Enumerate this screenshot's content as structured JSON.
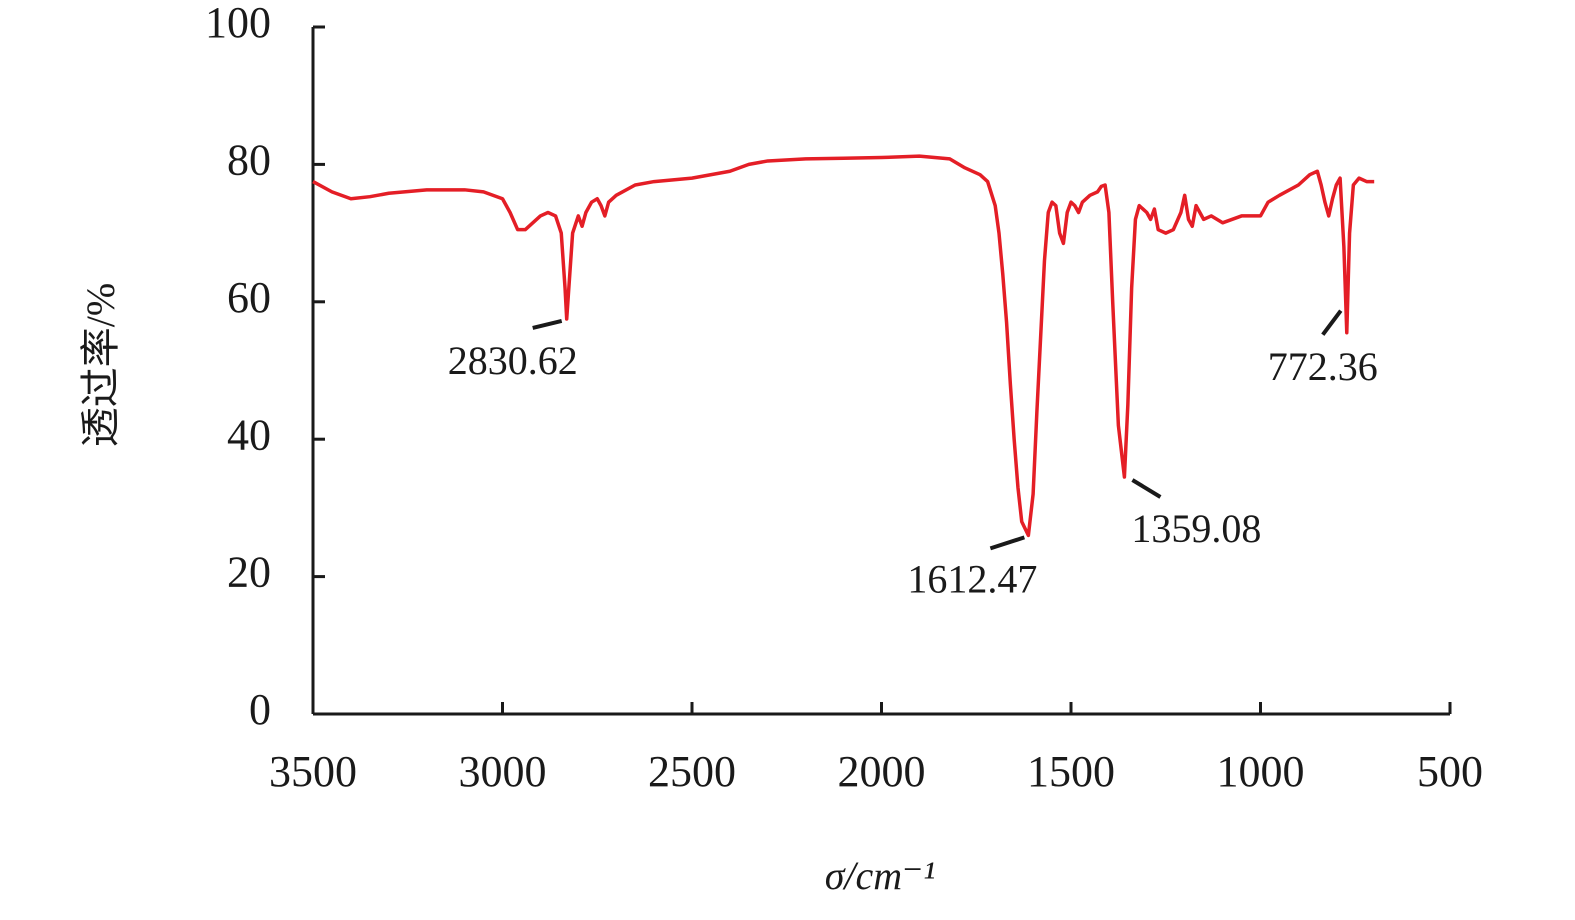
{
  "chart_data": {
    "type": "line",
    "x_label": "σ/cm⁻¹",
    "y_label": "透过率/%",
    "color": "#e41e26",
    "xlim": [
      3500,
      500
    ],
    "xticks": [
      3500,
      3000,
      2500,
      2000,
      1500,
      1000,
      500
    ],
    "ylim": [
      0,
      100
    ],
    "yticks": [
      0,
      20,
      40,
      60,
      80,
      100
    ],
    "grid": false,
    "x": [
      3500,
      3450,
      3400,
      3350,
      3300,
      3200,
      3100,
      3050,
      3000,
      2980,
      2960,
      2940,
      2920,
      2900,
      2880,
      2860,
      2845,
      2835,
      2830.62,
      2825,
      2815,
      2800,
      2790,
      2780,
      2765,
      2750,
      2740,
      2730,
      2720,
      2700,
      2650,
      2600,
      2500,
      2400,
      2350,
      2300,
      2200,
      2100,
      2000,
      1900,
      1820,
      1780,
      1740,
      1720,
      1700,
      1690,
      1680,
      1670,
      1660,
      1650,
      1640,
      1630,
      1612.47,
      1600,
      1590,
      1580,
      1570,
      1560,
      1550,
      1540,
      1530,
      1520,
      1510,
      1500,
      1490,
      1480,
      1470,
      1450,
      1430,
      1420,
      1410,
      1400,
      1390,
      1375,
      1359.08,
      1350,
      1340,
      1330,
      1320,
      1300,
      1290,
      1280,
      1270,
      1250,
      1230,
      1210,
      1200,
      1190,
      1180,
      1170,
      1150,
      1130,
      1100,
      1050,
      1000,
      980,
      950,
      900,
      870,
      850,
      840,
      830,
      820,
      810,
      800,
      790,
      780,
      772.36,
      765,
      755,
      740,
      720,
      700
    ],
    "values": [
      77.5,
      76,
      75,
      75.3,
      75.8,
      76.3,
      76.3,
      76,
      75,
      73,
      70.5,
      70.5,
      71.5,
      72.5,
      73,
      72.5,
      70,
      62,
      57.5,
      62,
      70,
      72.5,
      71,
      73,
      74.5,
      75,
      74,
      72.5,
      74.5,
      75.5,
      77,
      77.5,
      78,
      79,
      80,
      80.5,
      80.8,
      80.9,
      81,
      81.2,
      80.8,
      79.5,
      78.5,
      77.5,
      74,
      70,
      64,
      57,
      48,
      40,
      33,
      28,
      26,
      32,
      44,
      55,
      66,
      73,
      74.5,
      74,
      70,
      68.5,
      73,
      74.5,
      74,
      73,
      74.5,
      75.5,
      76,
      76.8,
      77,
      73,
      60,
      42,
      34.5,
      45,
      62,
      72,
      74,
      73,
      72,
      73.5,
      70.5,
      70,
      70.5,
      73,
      75.5,
      72,
      71,
      74,
      72,
      72.5,
      71.5,
      72.5,
      72.5,
      74.5,
      75.5,
      77,
      78.5,
      79,
      77,
      74.5,
      72.5,
      75,
      77,
      78,
      68,
      55.5,
      70,
      77,
      78,
      77.5,
      77.5
    ],
    "annotations": [
      {
        "label": "2830.62",
        "x": 2830.62,
        "y": 57.5
      },
      {
        "label": "1612.47",
        "x": 1612.47,
        "y": 26
      },
      {
        "label": "1359.08",
        "x": 1359.08,
        "y": 34.5
      },
      {
        "label": "772.36",
        "x": 772.36,
        "y": 55.5
      }
    ]
  }
}
